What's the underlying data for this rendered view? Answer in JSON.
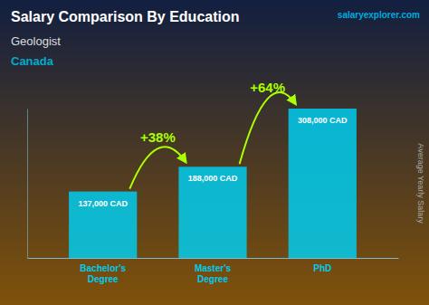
{
  "chart_data": {
    "type": "bar",
    "title": "Salary Comparison By Education",
    "subtitle": [
      "Geologist",
      "Canada"
    ],
    "source": "salaryexplorer.com",
    "ylabel": "Average Yearly Salary",
    "categories": [
      "Bachelor's\nDegree",
      "Master's\nDegree",
      "PhD"
    ],
    "values": [
      137000,
      188000,
      308000
    ],
    "value_labels": [
      "137,000 CAD",
      "188,000 CAD",
      "308,000 CAD"
    ],
    "annotations": [
      "+38%",
      "+64%"
    ],
    "color": "#00ccee",
    "ylim": [
      0,
      308000
    ],
    "data_labels": true,
    "tick_labels": "x"
  }
}
